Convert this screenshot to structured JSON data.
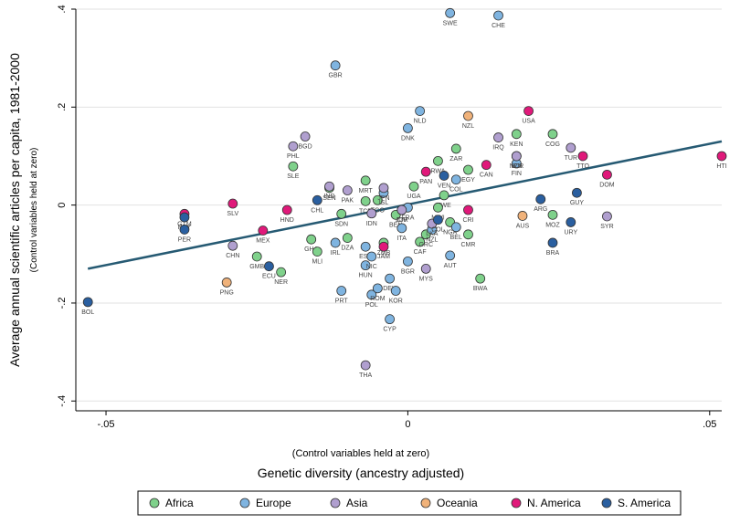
{
  "chart_data": {
    "type": "scatter",
    "ylabel": "Average annual scientific articles per capita, 1981-2000",
    "ylabel_note": "(Control variables held at zero)",
    "xlabel": "Genetic diversity (ancestry adjusted)",
    "xlabel_note": "(Control variables held at zero)",
    "xlim": [
      -0.055,
      0.052
    ],
    "ylim": [
      -0.42,
      0.4
    ],
    "grid": true,
    "x_ticks": [
      {
        "v": -0.05,
        "label": "-.05"
      },
      {
        "v": 0,
        "label": "0"
      },
      {
        "v": 0.05,
        "label": ".05"
      }
    ],
    "y_ticks": [
      {
        "v": -0.4,
        "label": "-.4"
      },
      {
        "v": -0.2,
        "label": "-.2"
      },
      {
        "v": 0,
        "label": "0"
      },
      {
        "v": 0.2,
        "label": ".2"
      },
      {
        "v": 0.4,
        "label": ".4"
      }
    ],
    "legend_position": "bottom",
    "fit_line": {
      "x": [
        -0.053,
        0.052
      ],
      "y": [
        -0.13,
        0.13
      ],
      "color": "#265a73"
    },
    "series": [
      {
        "name": "Africa",
        "color": "#7fd18b",
        "points": [
          [
            "SLE",
            -0.019,
            0.079
          ],
          [
            "SEN",
            -0.013,
            0.035
          ],
          [
            "SDN",
            -0.011,
            -0.018
          ],
          [
            "MRT",
            -0.007,
            0.05
          ],
          [
            "TCD",
            -0.007,
            0.008
          ],
          [
            "GHA",
            -0.016,
            -0.07
          ],
          [
            "MLI",
            -0.015,
            -0.095
          ],
          [
            "DZA",
            -0.01,
            -0.067
          ],
          [
            "ZMB",
            -0.004,
            -0.077
          ],
          [
            "GMB",
            -0.025,
            -0.105
          ],
          [
            "NER",
            -0.021,
            -0.137
          ],
          [
            "BEN",
            -0.002,
            -0.02
          ],
          [
            "UGA",
            0.001,
            0.038
          ],
          [
            "ZWE",
            0.006,
            0.02
          ],
          [
            "MWI",
            0.005,
            -0.005
          ],
          [
            "CAF",
            0.002,
            -0.075
          ],
          [
            "GRC",
            0.003,
            -0.06
          ],
          [
            "CMR",
            0.01,
            -0.06
          ],
          [
            "BWA",
            0.012,
            -0.15
          ],
          [
            "EGY",
            0.01,
            0.072
          ],
          [
            "ZAR",
            0.008,
            0.115
          ],
          [
            "RWA",
            0.005,
            0.09
          ],
          [
            "KEN",
            0.018,
            0.145
          ],
          [
            "MOZ",
            0.024,
            -0.02
          ],
          [
            "COG",
            0.024,
            0.145
          ],
          [
            "NGA",
            0.007,
            -0.035
          ],
          [
            "TGO",
            -0.005,
            0.01
          ],
          [
            "CIV",
            -0.001,
            -0.01
          ]
        ]
      },
      {
        "name": "Europe",
        "color": "#7fb4e0",
        "points": [
          [
            "SWE",
            0.007,
            0.392
          ],
          [
            "CHE",
            0.015,
            0.387
          ],
          [
            "GBR",
            -0.012,
            0.285
          ],
          [
            "NLD",
            0.002,
            0.192
          ],
          [
            "DNK",
            0.0,
            0.157
          ],
          [
            "FIN",
            0.018,
            0.085
          ],
          [
            "NOR",
            0.018,
            0.1
          ],
          [
            "IRL",
            -0.012,
            -0.077
          ],
          [
            "ESP",
            -0.007,
            -0.085
          ],
          [
            "HUN",
            -0.007,
            -0.123
          ],
          [
            "NIC",
            -0.006,
            -0.105
          ],
          [
            "PRT",
            -0.011,
            -0.175
          ],
          [
            "POL",
            -0.006,
            -0.183
          ],
          [
            "ROM",
            -0.005,
            -0.17
          ],
          [
            "DEU",
            -0.003,
            -0.15
          ],
          [
            "KOR",
            -0.002,
            -0.175
          ],
          [
            "CYP",
            -0.003,
            -0.233
          ],
          [
            "ITA",
            -0.001,
            -0.047
          ],
          [
            "BGR",
            0.0,
            -0.115
          ],
          [
            "AUT",
            0.007,
            -0.103
          ],
          [
            "BEL",
            0.008,
            -0.045
          ],
          [
            "NZL2",
            0.004,
            -0.05
          ],
          [
            "COL",
            0.008,
            0.052
          ],
          [
            "FRA",
            0.0,
            -0.005
          ],
          [
            "ISL",
            -0.004,
            0.025
          ]
        ]
      },
      {
        "name": "Asia",
        "color": "#b09fcf",
        "points": [
          [
            "PHL",
            -0.019,
            0.12
          ],
          [
            "BGD",
            -0.017,
            0.14
          ],
          [
            "PAK",
            -0.01,
            0.03
          ],
          [
            "IND",
            -0.013,
            0.038
          ],
          [
            "IDN",
            -0.006,
            -0.017
          ],
          [
            "CHN",
            -0.029,
            -0.083
          ],
          [
            "JPN",
            -0.004,
            0.035
          ],
          [
            "JOR",
            -0.001,
            -0.01
          ],
          [
            "MYS",
            0.003,
            -0.13
          ],
          [
            "IRQ",
            0.015,
            0.138
          ],
          [
            "TUR",
            0.027,
            0.117
          ],
          [
            "SYR",
            0.033,
            -0.023
          ],
          [
            "THA",
            -0.007,
            -0.327
          ],
          [
            "LKA",
            0.004,
            -0.038
          ],
          [
            "IRN",
            0.018,
            0.1
          ]
        ]
      },
      {
        "name": "Oceania",
        "color": "#f0b27a",
        "points": [
          [
            "NZL",
            0.01,
            0.182
          ],
          [
            "AUS",
            0.019,
            -0.022
          ],
          [
            "PNG",
            -0.03,
            -0.158
          ]
        ]
      },
      {
        "name": "N. America",
        "color": "#e0197a",
        "points": [
          [
            "USA",
            0.02,
            0.192
          ],
          [
            "CAN",
            0.013,
            0.082
          ],
          [
            "TTO",
            0.029,
            0.1
          ],
          [
            "DOM",
            0.033,
            0.062
          ],
          [
            "HTI",
            0.052,
            0.1
          ],
          [
            "SLV",
            -0.029,
            0.003
          ],
          [
            "HND",
            -0.02,
            -0.01
          ],
          [
            "MEX",
            -0.024,
            -0.052
          ],
          [
            "PAN",
            0.003,
            0.068
          ],
          [
            "CRI",
            0.01,
            -0.01
          ],
          [
            "GTM",
            -0.037,
            -0.018
          ],
          [
            "JAM",
            -0.004,
            -0.085
          ]
        ]
      },
      {
        "name": "S. America",
        "color": "#2a5fa0",
        "points": [
          [
            "BOL",
            -0.053,
            -0.198
          ],
          [
            "PRY",
            -0.037,
            -0.025
          ],
          [
            "ECU",
            -0.023,
            -0.125
          ],
          [
            "CHL",
            -0.015,
            0.01
          ],
          [
            "ARG",
            0.022,
            0.012
          ],
          [
            "URY",
            0.027,
            -0.035
          ],
          [
            "BRA",
            0.024,
            -0.077
          ],
          [
            "GUY",
            0.028,
            0.025
          ],
          [
            "PER",
            -0.037,
            -0.05
          ],
          [
            "VEN",
            0.006,
            0.06
          ],
          [
            "COL2",
            0.005,
            -0.03
          ]
        ]
      }
    ]
  }
}
